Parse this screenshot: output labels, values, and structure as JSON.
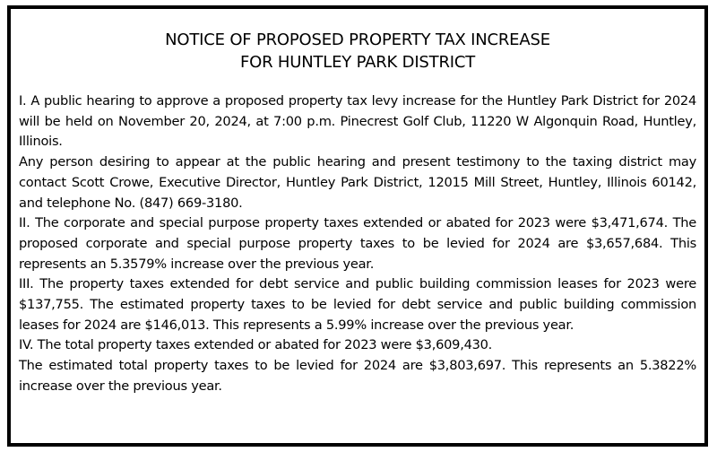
{
  "notice": {
    "title_line1": "NOTICE OF PROPOSED PROPERTY TAX INCREASE",
    "title_line2": "FOR HUNTLEY PARK DISTRICT",
    "paragraphs": [
      "I. A public hearing to approve a proposed property tax levy increase for the Huntley Park District for 2024 will be held on November 20, 2024, at 7:00 p.m. Pinecrest Golf Club, 11220 W Algonquin Road, Huntley, Illinois.",
      "Any person desiring to appear at the public hearing and present testimony to the taxing district may contact Scott Crowe, Executive Director, Huntley Park District, 12015 Mill Street, Huntley, Illinois 60142, and telephone No. (847) 669-3180.",
      "II. The corporate and special purpose property taxes extended or abated for 2023 were $3,471,674. The proposed corporate and special purpose property taxes to be levied for 2024 are $3,657,684. This represents an 5.3579% increase over the previous year.",
      "III. The property taxes extended for debt service and public building commission leases for 2023 were $137,755.  The estimated property taxes to be levied for debt service and public building commission leases for 2024 are $146,013. This represents a 5.99% increase over the previous year.",
      "IV. The total property taxes extended or abated for 2023 were $3,609,430.",
      "The estimated total property taxes to be levied for 2024 are $3,803,697. This represents an 5.3822% increase over the previous year."
    ]
  }
}
